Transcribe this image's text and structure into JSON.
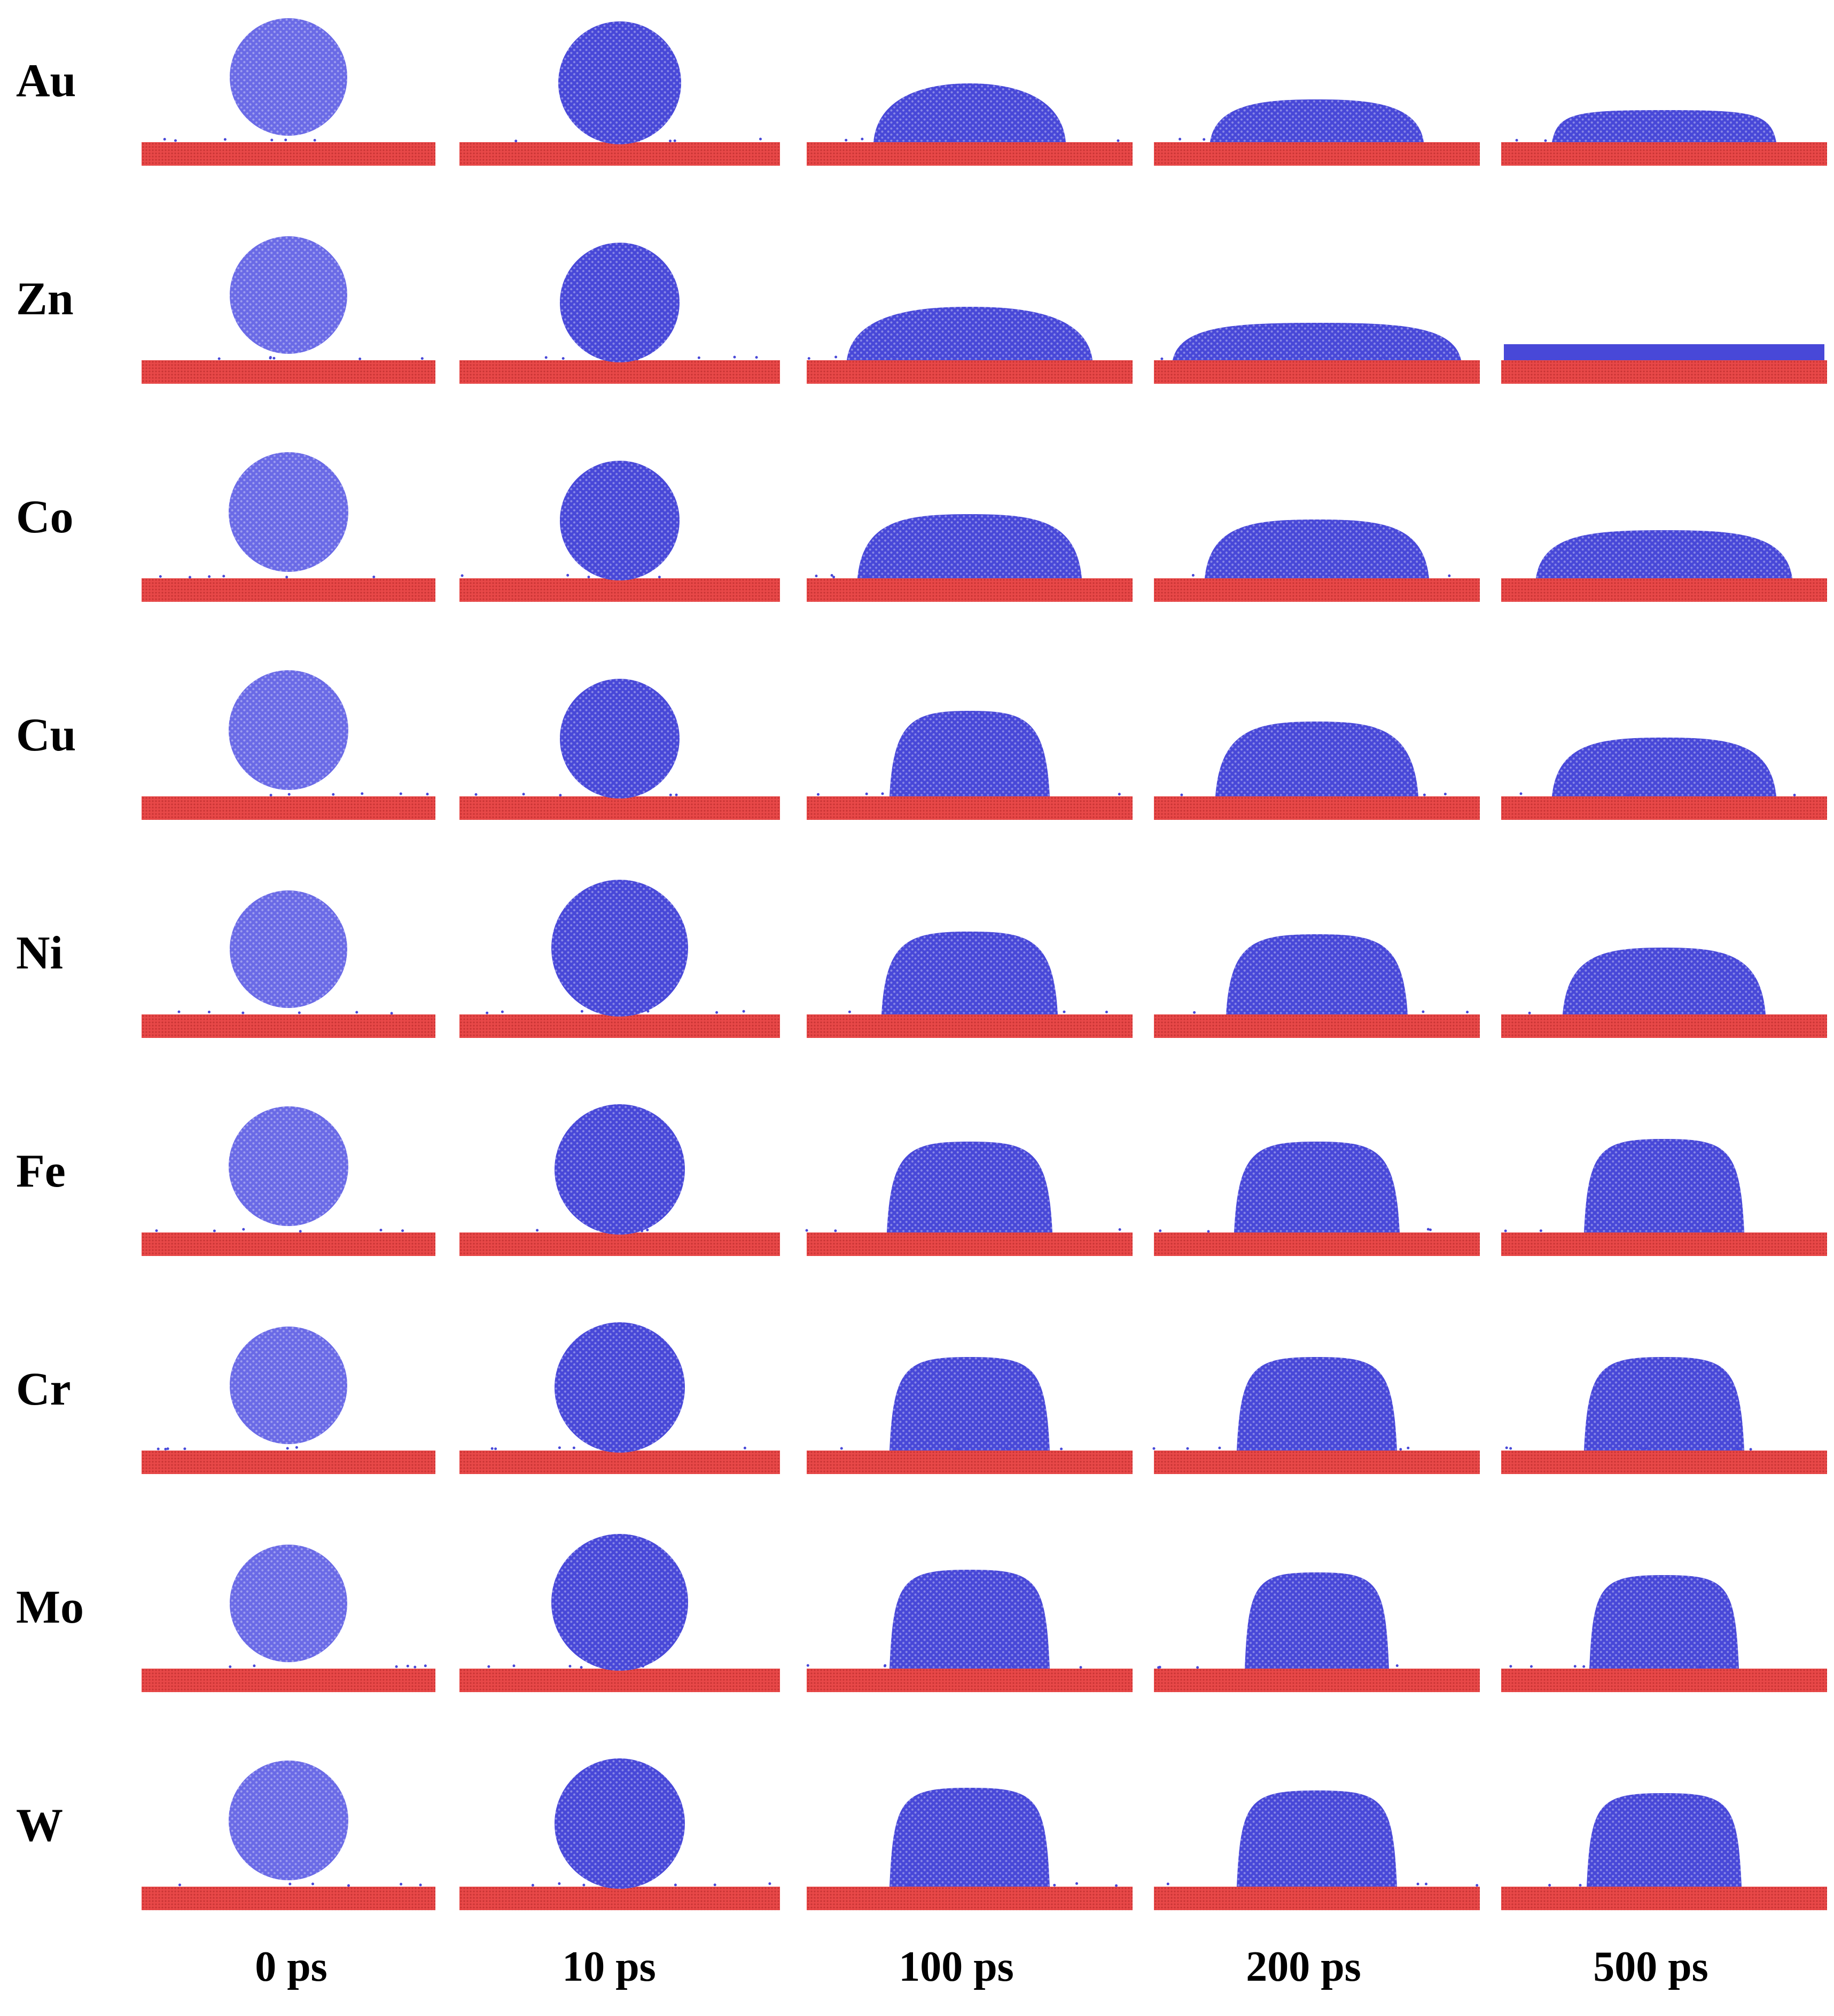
{
  "colors": {
    "droplet": "#4848d8",
    "droplet_initial": "#6a6ae6",
    "substrate": "#e84848",
    "substrate_dark": "#c83434",
    "substrate_light": "#f07070"
  },
  "columns": [
    {
      "id": "t0",
      "label": "0 ps"
    },
    {
      "id": "t10",
      "label": "10 ps"
    },
    {
      "id": "t100",
      "label": "100 ps"
    },
    {
      "id": "t200",
      "label": "200 ps"
    },
    {
      "id": "t500",
      "label": "500 ps"
    }
  ],
  "rows": [
    {
      "id": "au",
      "label": "Au"
    },
    {
      "id": "zn",
      "label": "Zn"
    },
    {
      "id": "co",
      "label": "Co"
    },
    {
      "id": "cu",
      "label": "Cu"
    },
    {
      "id": "ni",
      "label": "Ni"
    },
    {
      "id": "fe",
      "label": "Fe"
    },
    {
      "id": "cr",
      "label": "Cr"
    },
    {
      "id": "mo",
      "label": "Mo"
    },
    {
      "id": "w",
      "label": "W"
    }
  ]
}
